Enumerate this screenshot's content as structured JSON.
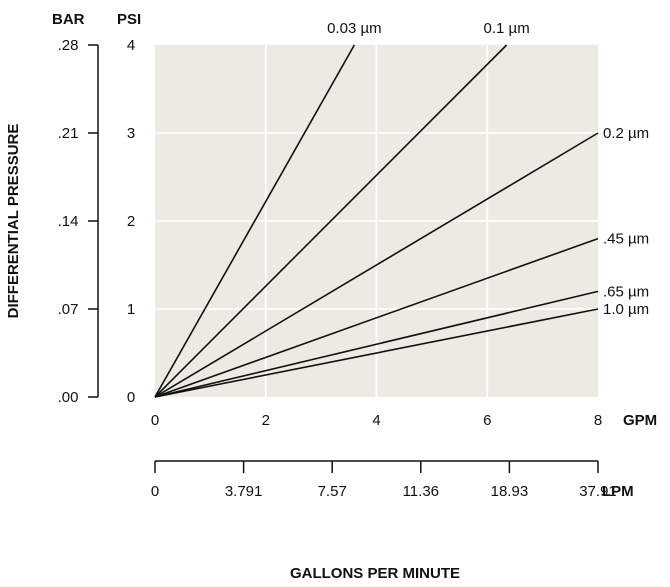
{
  "chart_data": {
    "type": "line",
    "title": "",
    "xlabel": "GALLONS PER MINUTE",
    "ylabel": "DIFFERENTIAL PRESSURE",
    "x_unit": "GPM",
    "x_ticks": [
      "0",
      "2",
      "4",
      "6",
      "8"
    ],
    "xlim": [
      0,
      8
    ],
    "x2_unit": "LPM",
    "x2_ticks": [
      "0",
      "3.791",
      "7.57",
      "11.36",
      "18.93",
      "37.91"
    ],
    "y_unit": "PSI",
    "y_ticks": [
      "0",
      "1",
      "2",
      "3",
      "4"
    ],
    "ylim": [
      0,
      4
    ],
    "y2_unit": "BAR",
    "y2_ticks": [
      ".00",
      ".07",
      ".14",
      ".21",
      ".28"
    ],
    "grid": true,
    "plot_background": "#ede9e3",
    "series": [
      {
        "name": "0.03 µm",
        "x": [
          0,
          3.6
        ],
        "y": [
          0,
          4
        ]
      },
      {
        "name": "0.1 µm",
        "x": [
          0,
          6.35
        ],
        "y": [
          0,
          4
        ]
      },
      {
        "name": "0.2 µm",
        "x": [
          0,
          8
        ],
        "y": [
          0,
          3.0
        ]
      },
      {
        "name": ".45 µm",
        "x": [
          0,
          8
        ],
        "y": [
          0,
          1.8
        ]
      },
      {
        "name": ".65 µm",
        "x": [
          0,
          8
        ],
        "y": [
          0,
          1.2
        ]
      },
      {
        "name": "1.0 µm",
        "x": [
          0,
          8
        ],
        "y": [
          0,
          1.0
        ]
      }
    ]
  }
}
